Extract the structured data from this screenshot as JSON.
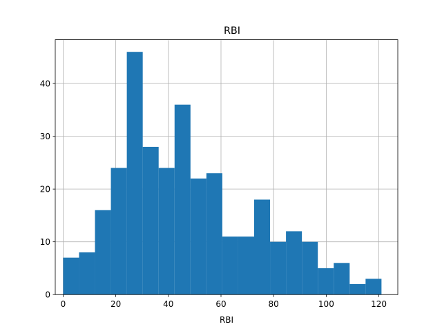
{
  "chart_data": {
    "type": "bar",
    "title": "RBI",
    "xlabel": "RBI",
    "ylabel": "",
    "bin_edges": [
      0,
      6.05,
      12.1,
      18.15,
      24.2,
      30.25,
      36.3,
      42.35,
      48.4,
      54.45,
      60.5,
      66.55,
      72.6,
      78.65,
      84.7,
      90.75,
      96.8,
      102.85,
      108.9,
      114.95,
      121
    ],
    "values": [
      7,
      8,
      16,
      24,
      46,
      28,
      24,
      36,
      22,
      23,
      11,
      11,
      18,
      10,
      12,
      10,
      5,
      6,
      2,
      3
    ],
    "xlim": [
      -3,
      127.2
    ],
    "ylim": [
      0,
      48.3
    ],
    "xticks": [
      0,
      20,
      40,
      60,
      80,
      100,
      120
    ],
    "yticks": [
      0,
      10,
      20,
      30,
      40
    ],
    "grid": true,
    "bar_color": "#1f77b4"
  }
}
